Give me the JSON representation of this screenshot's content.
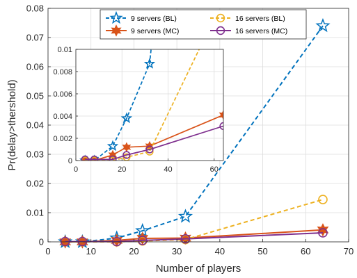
{
  "chart_data": {
    "type": "line",
    "title": "",
    "xlabel": "Number of players",
    "ylabel": "Pr(delay>thershold)",
    "xlim": [
      0,
      70
    ],
    "ylim": [
      0,
      0.08
    ],
    "xticks": [
      0,
      10,
      20,
      30,
      40,
      50,
      60,
      70
    ],
    "yticks": [
      0,
      0.01,
      0.02,
      0.03,
      0.04,
      0.05,
      0.06,
      0.07,
      0.08
    ],
    "ytick_labels": [
      "0",
      "0.01",
      "0.02",
      "0.03",
      "0.04",
      "0.05",
      "0.06",
      "0.07",
      "0.08"
    ],
    "grid": true,
    "legend_position": "top-center",
    "legend_columns": 2,
    "x": [
      4,
      8,
      16,
      22,
      32,
      64
    ],
    "series": [
      {
        "name": "9 servers (BL)",
        "color": "#0072BD",
        "line": "dashed",
        "marker": "star",
        "values": [
          0,
          0,
          0.0013,
          0.0038,
          0.0087,
          0.074
        ]
      },
      {
        "name": "9 servers (MC)",
        "color": "#D95319",
        "line": "solid",
        "marker": "hexagram",
        "values": [
          0,
          0,
          0.0005,
          0.0012,
          0.0013,
          0.0041
        ]
      },
      {
        "name": "16 servers (BL)",
        "color": "#EDB120",
        "line": "dashed",
        "marker": "circle",
        "values": [
          0,
          0,
          0,
          0.0003,
          0.0008,
          0.0145
        ]
      },
      {
        "name": "16 servers (MC)",
        "color": "#7E2F8E",
        "line": "solid",
        "marker": "circle",
        "values": [
          0.0001,
          0.0001,
          0.0001,
          0.0005,
          0.001,
          0.0031
        ]
      }
    ],
    "inset": {
      "xlim": [
        0,
        64
      ],
      "ylim": [
        0,
        0.01
      ],
      "xticks": [
        0,
        20,
        40,
        60
      ],
      "yticks": [
        0,
        0.002,
        0.004,
        0.006,
        0.008,
        0.01
      ],
      "ytick_labels": [
        "0",
        "0.002",
        "0.004",
        "0.006",
        "0.008",
        "0.01"
      ],
      "grid": true
    }
  }
}
